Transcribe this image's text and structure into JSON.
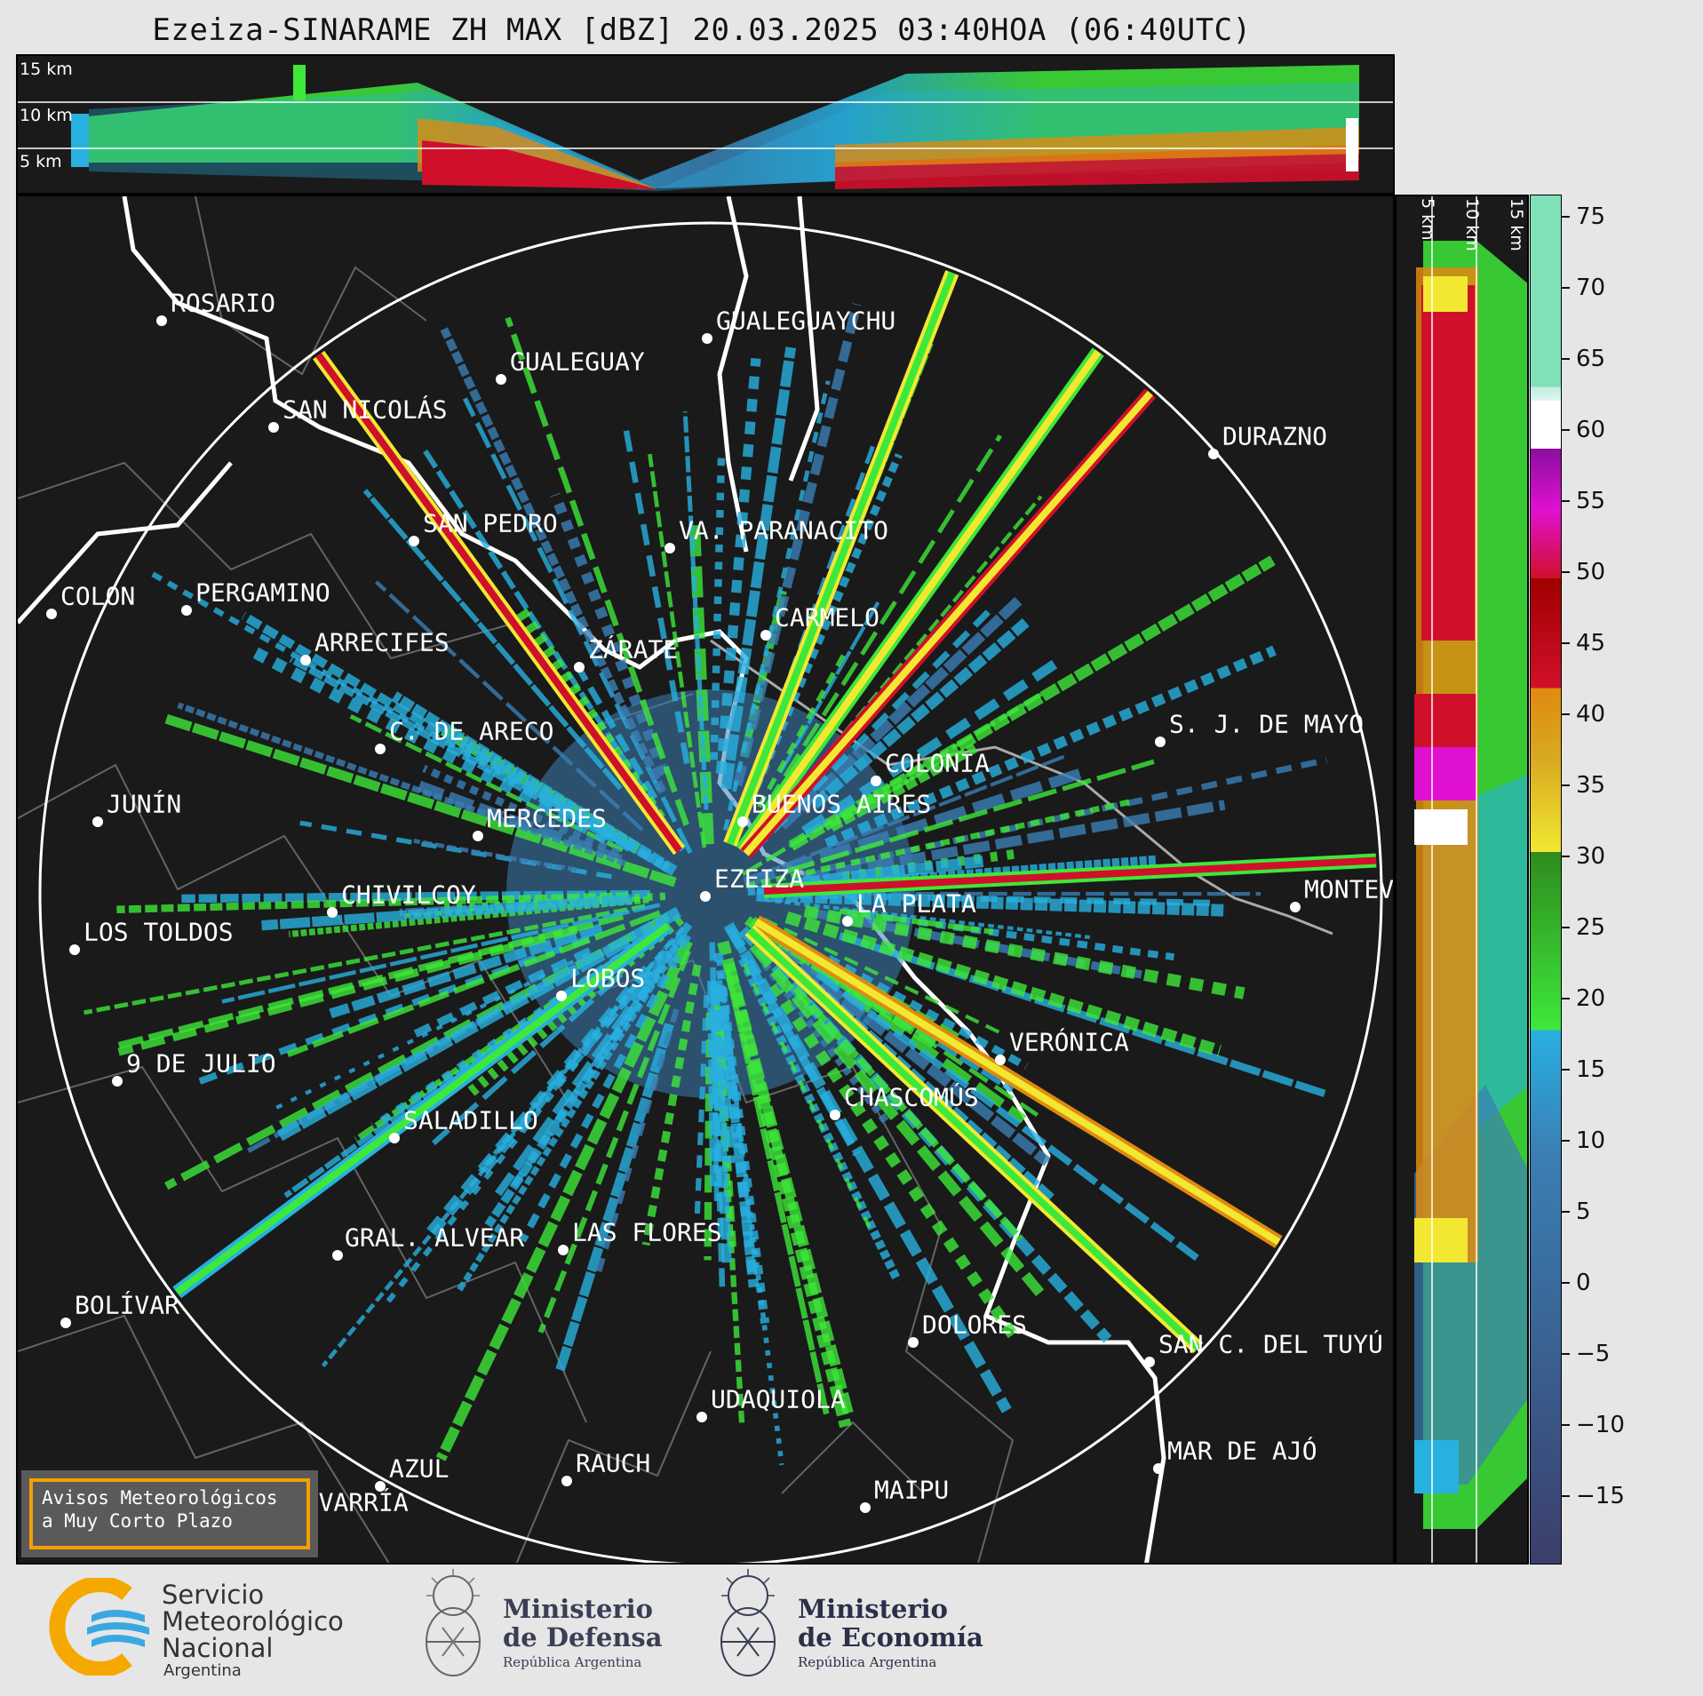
{
  "title": "Ezeiza-SINARAME ZH MAX [dBZ] 20.03.2025 03:40HOA (06:40UTC)",
  "top_panel": {
    "height_labels": [
      "15 km",
      "10 km",
      "5 km"
    ]
  },
  "right_panel": {
    "height_labels": [
      "5 km",
      "10 km",
      "15 km"
    ]
  },
  "colorbar": {
    "ticks": [
      "75",
      "70",
      "65",
      "60",
      "55",
      "50",
      "45",
      "40",
      "35",
      "30",
      "25",
      "20",
      "15",
      "10",
      "5",
      "0",
      "−5",
      "−10",
      "−15"
    ],
    "colors": {
      "min": "#3b3e6b",
      "blue": "#3a7fb5",
      "light_blue": "#28b0e0",
      "green": "#2e8b1f",
      "bright_green": "#3ee83a",
      "yellow": "#f2e832",
      "orange": "#e08a10",
      "red": "#d0102a",
      "magenta": "#e010d0",
      "purple": "#8a10a0",
      "white": "#ffffff",
      "max": "#80e0b8"
    }
  },
  "map": {
    "background": "#1a1a1a",
    "radar_site": "EZEIZA",
    "cities": [
      {
        "name": "ROSARIO"
      },
      {
        "name": "GUALEGUAYCHU"
      },
      {
        "name": "GUALEGUAY"
      },
      {
        "name": "SAN NICOLÁS"
      },
      {
        "name": "DURAZNO"
      },
      {
        "name": "SAN PEDRO"
      },
      {
        "name": "VA. PARANACITO"
      },
      {
        "name": "COLON"
      },
      {
        "name": "PERGAMINO"
      },
      {
        "name": "CARMELO"
      },
      {
        "name": "ARRECIFES"
      },
      {
        "name": "ZÁRATE"
      },
      {
        "name": "S. J. DE MAYO"
      },
      {
        "name": "C. DE ARECO"
      },
      {
        "name": "COLONIA"
      },
      {
        "name": "JUNÍN"
      },
      {
        "name": "BUENOS AIRES"
      },
      {
        "name": "MERCEDES"
      },
      {
        "name": "EZEIZA"
      },
      {
        "name": "MONTEVIDEO"
      },
      {
        "name": "CHIVILCOY"
      },
      {
        "name": "LA PLATA"
      },
      {
        "name": "LOS TOLDOS"
      },
      {
        "name": "LOBOS"
      },
      {
        "name": "VERÓNICA"
      },
      {
        "name": "9 DE JULIO"
      },
      {
        "name": "CHASCOMÚS"
      },
      {
        "name": "SALADILLO"
      },
      {
        "name": "GRAL. ALVEAR"
      },
      {
        "name": "LAS FLORES"
      },
      {
        "name": "DOLORES"
      },
      {
        "name": "BOLÍVAR"
      },
      {
        "name": "SAN C. DEL TUYÚ"
      },
      {
        "name": "UDAQUIOLA"
      },
      {
        "name": "MAR DE AJÓ"
      },
      {
        "name": "AZUL"
      },
      {
        "name": "RAUCH"
      },
      {
        "name": "OLAVARRÍA"
      },
      {
        "name": "MAIPU"
      }
    ]
  },
  "avisos": {
    "line1": "Avisos Meteorológicos",
    "line2": "a Muy Corto Plazo"
  },
  "logos": {
    "smn": {
      "line1": "Servicio",
      "line2": "Meteorológico",
      "line3": "Nacional",
      "line4": "Argentina"
    },
    "defensa": {
      "line1": "Ministerio",
      "line2": "de Defensa",
      "line3": "República Argentina"
    },
    "economia": {
      "line1": "Ministerio",
      "line2": "de Economía",
      "line3": "República Argentina"
    }
  }
}
